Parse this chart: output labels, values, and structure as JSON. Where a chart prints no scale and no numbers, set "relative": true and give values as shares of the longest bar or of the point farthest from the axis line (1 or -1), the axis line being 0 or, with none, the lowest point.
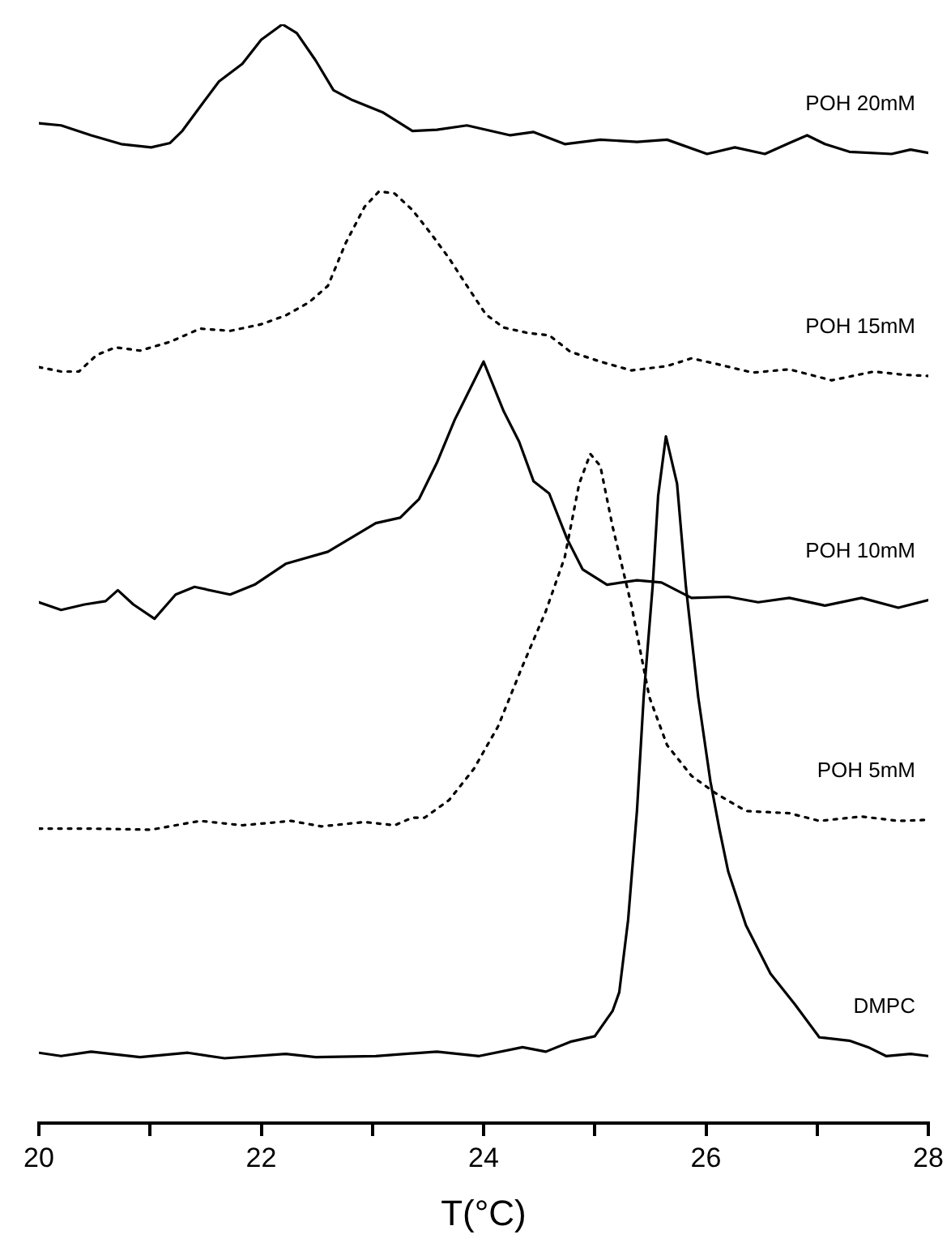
{
  "chart_data": {
    "type": "line",
    "relative": true,
    "xlabel": "T(°C)",
    "xlim": [
      20,
      28
    ],
    "xticks": [
      20,
      {
        "value": 21,
        "label": null
      },
      22,
      {
        "value": 23,
        "label": null
      },
      24,
      {
        "value": 25,
        "label": null
      },
      26,
      {
        "value": 27,
        "label": null
      },
      28
    ],
    "grid": false,
    "legend": false,
    "tick_labels": "x",
    "marker": "none",
    "series": [
      {
        "name": "POH 20mM",
        "color": "#000000",
        "line_style": "solid",
        "x": [
          20.0,
          20.2,
          20.47,
          20.74,
          21.01,
          21.18,
          21.29,
          21.45,
          21.62,
          21.83,
          22.0,
          22.19,
          22.32,
          22.49,
          22.65,
          22.82,
          23.09,
          23.36,
          23.58,
          23.85,
          24.24,
          24.45,
          24.73,
          25.05,
          25.38,
          25.65,
          26.01,
          26.26,
          26.53,
          26.75,
          26.91,
          27.07,
          27.29,
          27.67,
          27.84,
          28.0
        ],
        "values": [
          0.91,
          0.908,
          0.899,
          0.891,
          0.888,
          0.892,
          0.903,
          0.925,
          0.948,
          0.964,
          0.986,
          1.0,
          0.992,
          0.967,
          0.94,
          0.931,
          0.92,
          0.903,
          0.904,
          0.908,
          0.899,
          0.902,
          0.891,
          0.895,
          0.893,
          0.895,
          0.882,
          0.888,
          0.882,
          0.892,
          0.899,
          0.891,
          0.884,
          0.882,
          0.886,
          0.883
        ]
      },
      {
        "name": "POH 15mM",
        "color": "#000000",
        "line_style": "dotted",
        "x": [
          20.0,
          20.2,
          20.36,
          20.52,
          20.69,
          20.91,
          21.18,
          21.45,
          21.72,
          22.0,
          22.22,
          22.43,
          22.6,
          22.76,
          22.93,
          23.06,
          23.2,
          23.36,
          23.53,
          23.69,
          23.85,
          24.02,
          24.18,
          24.4,
          24.59,
          24.78,
          25.05,
          25.33,
          25.65,
          25.87,
          26.09,
          26.42,
          26.75,
          27.13,
          27.51,
          27.78,
          28.0
        ],
        "values": [
          0.688,
          0.684,
          0.684,
          0.699,
          0.706,
          0.703,
          0.711,
          0.723,
          0.721,
          0.727,
          0.735,
          0.747,
          0.762,
          0.801,
          0.834,
          0.848,
          0.846,
          0.831,
          0.809,
          0.787,
          0.762,
          0.736,
          0.724,
          0.719,
          0.717,
          0.702,
          0.693,
          0.685,
          0.689,
          0.696,
          0.691,
          0.683,
          0.686,
          0.676,
          0.684,
          0.681,
          0.68
        ]
      },
      {
        "name": "POH 10mM",
        "color": "#000000",
        "line_style": "solid",
        "x": [
          20.0,
          20.2,
          20.41,
          20.6,
          20.71,
          20.85,
          21.04,
          21.23,
          21.4,
          21.72,
          21.94,
          22.22,
          22.6,
          23.03,
          23.25,
          23.42,
          23.58,
          23.74,
          24.0,
          24.18,
          24.32,
          24.45,
          24.59,
          24.75,
          24.89,
          25.11,
          25.38,
          25.6,
          25.87,
          26.2,
          26.47,
          26.75,
          27.07,
          27.4,
          27.73,
          28.0
        ],
        "values": [
          0.474,
          0.467,
          0.472,
          0.475,
          0.485,
          0.472,
          0.459,
          0.481,
          0.488,
          0.481,
          0.49,
          0.509,
          0.52,
          0.546,
          0.551,
          0.568,
          0.601,
          0.64,
          0.693,
          0.648,
          0.62,
          0.584,
          0.573,
          0.532,
          0.504,
          0.49,
          0.494,
          0.492,
          0.478,
          0.479,
          0.474,
          0.478,
          0.471,
          0.478,
          0.469,
          0.476
        ]
      },
      {
        "name": "POH 5mM",
        "color": "#000000",
        "line_style": "dotted",
        "x": [
          20.0,
          20.47,
          21.01,
          21.45,
          21.83,
          22.27,
          22.54,
          22.93,
          23.2,
          23.36,
          23.47,
          23.69,
          23.91,
          24.13,
          24.35,
          24.56,
          24.73,
          24.86,
          24.96,
          25.05,
          25.16,
          25.33,
          25.49,
          25.65,
          25.87,
          26.09,
          26.36,
          26.75,
          27.02,
          27.4,
          27.73,
          28.0
        ],
        "values": [
          0.268,
          0.268,
          0.267,
          0.275,
          0.271,
          0.275,
          0.27,
          0.274,
          0.271,
          0.278,
          0.278,
          0.294,
          0.322,
          0.361,
          0.416,
          0.466,
          0.515,
          0.582,
          0.609,
          0.598,
          0.543,
          0.471,
          0.388,
          0.344,
          0.316,
          0.3,
          0.284,
          0.282,
          0.275,
          0.279,
          0.275,
          0.276
        ]
      },
      {
        "name": "DMPC",
        "color": "#000000",
        "line_style": "solid",
        "x": [
          20.0,
          20.2,
          20.47,
          20.91,
          21.34,
          21.67,
          22.22,
          22.49,
          23.03,
          23.58,
          23.96,
          24.35,
          24.56,
          24.78,
          25.0,
          25.16,
          25.22,
          25.3,
          25.38,
          25.44,
          25.52,
          25.57,
          25.64,
          25.74,
          25.82,
          25.93,
          26.04,
          26.12,
          26.2,
          26.36,
          26.58,
          26.8,
          27.02,
          27.29,
          27.46,
          27.62,
          27.84,
          28.0
        ],
        "values": [
          0.064,
          0.061,
          0.065,
          0.06,
          0.064,
          0.059,
          0.063,
          0.06,
          0.061,
          0.065,
          0.061,
          0.069,
          0.065,
          0.074,
          0.079,
          0.102,
          0.119,
          0.185,
          0.285,
          0.388,
          0.488,
          0.571,
          0.625,
          0.582,
          0.488,
          0.388,
          0.311,
          0.268,
          0.229,
          0.18,
          0.136,
          0.108,
          0.078,
          0.075,
          0.069,
          0.061,
          0.063,
          0.061
        ]
      }
    ]
  }
}
